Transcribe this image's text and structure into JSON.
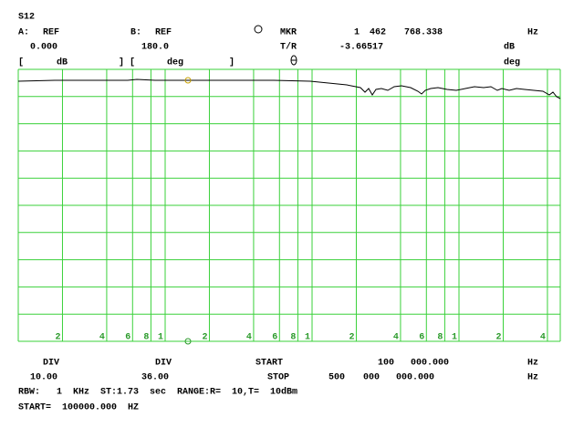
{
  "title": "S12",
  "header": {
    "row1": [
      "A:",
      "REF",
      "B:",
      "REF",
      "MKR",
      "1",
      "462",
      "768.338",
      "Hz"
    ],
    "row2": [
      "0.000",
      "180.0",
      "T/R",
      "-3.66517",
      "dB"
    ],
    "row3": [
      "[",
      "dB",
      "]",
      "[",
      "deg",
      "]",
      "deg"
    ]
  },
  "grid_labels": [
    "2",
    "4",
    "6",
    "8",
    "1",
    "2",
    "4",
    "6",
    "8",
    "1",
    "2",
    "4",
    "6",
    "8",
    "1",
    "2",
    "4"
  ],
  "footer": {
    "row1": [
      "DIV",
      "DIV",
      "START",
      "100",
      "000.000",
      "Hz"
    ],
    "row2": [
      "10.00",
      "36.00",
      "STOP",
      "500",
      "000",
      "000.000",
      "Hz"
    ],
    "rbw": "RBW:   1  KHz  ST:1.73  sec  RANGE:R=  10,T=  10dBm",
    "start": "START=  100000.000  HZ"
  }
}
